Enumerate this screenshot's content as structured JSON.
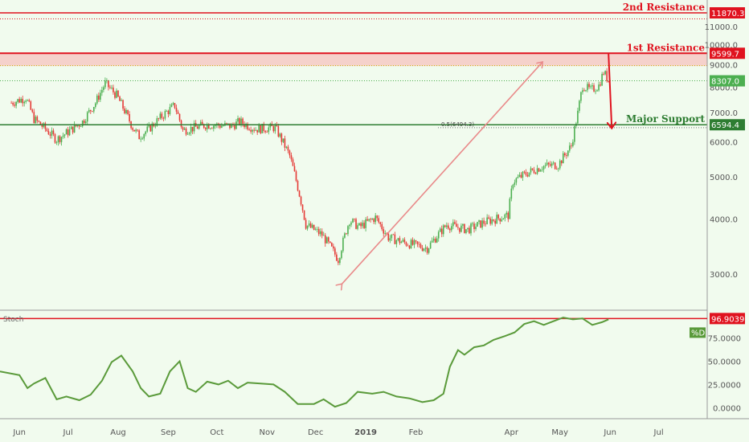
{
  "colors": {
    "background": "#f1fbee",
    "up_candle": "#4caf50",
    "down_candle": "#e53935",
    "resistance": "#e0131f",
    "support": "#2e7d32",
    "stoch_line": "#5a9a3a",
    "zone_fill": "#f6c9c4"
  },
  "chart_data": [
    {
      "type": "candlestick",
      "yscale": "log",
      "ylim": [
        2500,
        12700
      ],
      "y_ticks": [
        "3000.0",
        "4000.0",
        "5000.0",
        "6000.0",
        "7000.0",
        "8000.0",
        "9000.0",
        "10000.0",
        "11000.0"
      ],
      "x_ticks": [
        "Jun",
        "Jul",
        "Aug",
        "Sep",
        "Oct",
        "Nov",
        "Dec",
        "2019",
        "Feb",
        "Apr",
        "May",
        "Jun",
        "Jul"
      ],
      "close_path": [
        [
          "2018-05-27",
          7400
        ],
        [
          "2018-06-05",
          7600
        ],
        [
          "2018-06-10",
          6800
        ],
        [
          "2018-06-24",
          6100
        ],
        [
          "2018-07-01",
          6350
        ],
        [
          "2018-07-10",
          6700
        ],
        [
          "2018-07-18",
          7400
        ],
        [
          "2018-07-24",
          8200
        ],
        [
          "2018-07-31",
          7700
        ],
        [
          "2018-08-10",
          6500
        ],
        [
          "2018-08-14",
          6200
        ],
        [
          "2018-08-20",
          6450
        ],
        [
          "2018-08-30",
          7000
        ],
        [
          "2018-09-05",
          7300
        ],
        [
          "2018-09-10",
          6400
        ],
        [
          "2018-09-25",
          6600
        ],
        [
          "2018-10-10",
          6550
        ],
        [
          "2018-10-15",
          6700
        ],
        [
          "2018-10-25",
          6450
        ],
        [
          "2018-11-06",
          6500
        ],
        [
          "2018-11-15",
          5600
        ],
        [
          "2018-11-25",
          3900
        ],
        [
          "2018-12-05",
          3700
        ],
        [
          "2018-12-15",
          3250
        ],
        [
          "2018-12-22",
          4000
        ],
        [
          "2018-12-28",
          3850
        ],
        [
          "2019-01-07",
          4050
        ],
        [
          "2019-01-15",
          3650
        ],
        [
          "2019-01-25",
          3550
        ],
        [
          "2019-02-08",
          3450
        ],
        [
          "2019-02-20",
          3900
        ],
        [
          "2019-03-05",
          3800
        ],
        [
          "2019-03-15",
          3950
        ],
        [
          "2019-03-30",
          4100
        ],
        [
          "2019-04-02",
          4900
        ],
        [
          "2019-04-10",
          5100
        ],
        [
          "2019-04-20",
          5300
        ],
        [
          "2019-04-30",
          5350
        ],
        [
          "2019-05-08",
          5900
        ],
        [
          "2019-05-12",
          7000
        ],
        [
          "2019-05-15",
          8100
        ],
        [
          "2019-05-20",
          7900
        ],
        [
          "2019-05-25",
          8100
        ],
        [
          "2019-05-28",
          8700
        ],
        [
          "2019-05-31",
          8307
        ]
      ],
      "levels": [
        {
          "name": "2nd Resistance",
          "value": 11870.3,
          "tag": "11870.3"
        },
        {
          "name": "1st Resistance",
          "value": 9599.7,
          "tag": "9599.7"
        },
        {
          "name": "Major Support",
          "value": 6594.4,
          "tag": "6594.4"
        }
      ],
      "last_price": {
        "value": 8307.0,
        "tag": "8307.0"
      },
      "fib_label": "0.5(6494.3)",
      "fib_level": 6494.3,
      "annotations": {
        "up_arrow": {
          "from": [
            "2018-12-17",
            2850
          ],
          "to": [
            "2019-04-20",
            9150
          ]
        },
        "down_arrow": {
          "from": [
            "2019-05-31",
            9600
          ],
          "to": [
            "2019-06-02",
            6500
          ]
        }
      }
    },
    {
      "type": "line",
      "indicator_label": "Stoch",
      "series_tag": "%D",
      "ylim": [
        -10,
        105
      ],
      "y_ticks": [
        "0.0000",
        "25.0000",
        "50.0000",
        "75.0000"
      ],
      "level": {
        "value": 96.9039,
        "tag": "96.9039"
      },
      "series": [
        {
          "values": [
            [
              "2018-05-20",
              40
            ],
            [
              "2018-06-01",
              36
            ],
            [
              "2018-06-06",
              22
            ],
            [
              "2018-06-10",
              27
            ],
            [
              "2018-06-17",
              33
            ],
            [
              "2018-06-24",
              10
            ],
            [
              "2018-06-30",
              13
            ],
            [
              "2018-07-08",
              9
            ],
            [
              "2018-07-15",
              15
            ],
            [
              "2018-07-22",
              30
            ],
            [
              "2018-07-28",
              50
            ],
            [
              "2018-08-03",
              57
            ],
            [
              "2018-08-10",
              40
            ],
            [
              "2018-08-15",
              22
            ],
            [
              "2018-08-20",
              13
            ],
            [
              "2018-08-27",
              16
            ],
            [
              "2018-09-02",
              40
            ],
            [
              "2018-09-08",
              51
            ],
            [
              "2018-09-13",
              22
            ],
            [
              "2018-09-18",
              18
            ],
            [
              "2018-09-25",
              29
            ],
            [
              "2018-10-02",
              26
            ],
            [
              "2018-10-08",
              30
            ],
            [
              "2018-10-14",
              22
            ],
            [
              "2018-10-20",
              28
            ],
            [
              "2018-11-05",
              26
            ],
            [
              "2018-11-12",
              18
            ],
            [
              "2018-11-20",
              5
            ],
            [
              "2018-11-30",
              5
            ],
            [
              "2018-12-06",
              10
            ],
            [
              "2018-12-13",
              2
            ],
            [
              "2018-12-20",
              6
            ],
            [
              "2018-12-27",
              18
            ],
            [
              "2019-01-05",
              16
            ],
            [
              "2019-01-12",
              18
            ],
            [
              "2019-01-20",
              13
            ],
            [
              "2019-01-28",
              11
            ],
            [
              "2019-02-05",
              7
            ],
            [
              "2019-02-12",
              9
            ],
            [
              "2019-02-18",
              16
            ],
            [
              "2019-02-22",
              45
            ],
            [
              "2019-02-27",
              63
            ],
            [
              "2019-03-03",
              58
            ],
            [
              "2019-03-09",
              66
            ],
            [
              "2019-03-15",
              68
            ],
            [
              "2019-03-21",
              74
            ],
            [
              "2019-03-28",
              78
            ],
            [
              "2019-04-03",
              82
            ],
            [
              "2019-04-09",
              91
            ],
            [
              "2019-04-15",
              94
            ],
            [
              "2019-04-21",
              90
            ],
            [
              "2019-04-27",
              94
            ],
            [
              "2019-05-03",
              98
            ],
            [
              "2019-05-09",
              96
            ],
            [
              "2019-05-15",
              97
            ],
            [
              "2019-05-21",
              90
            ],
            [
              "2019-05-27",
              93
            ],
            [
              "2019-05-31",
              96
            ]
          ]
        }
      ]
    }
  ]
}
